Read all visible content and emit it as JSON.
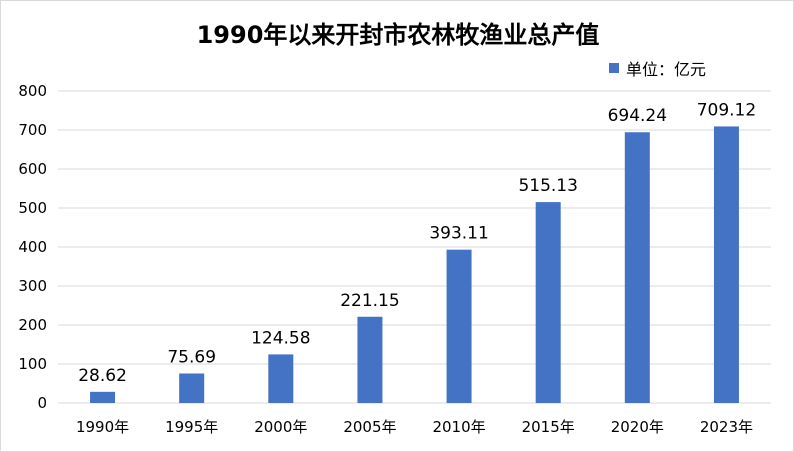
{
  "chart_data": {
    "type": "bar",
    "title": "1990年以来开封市农林牧渔业总产值",
    "legend_label": "单位：亿元",
    "categories": [
      "1990年",
      "1995年",
      "2000年",
      "2005年",
      "2010年",
      "2015年",
      "2020年",
      "2023年"
    ],
    "series": [
      {
        "name": "单位：亿元",
        "values": [
          28.62,
          75.69,
          124.58,
          221.15,
          393.11,
          515.13,
          694.24,
          709.12
        ]
      }
    ],
    "data_labels": [
      "28.62",
      "75.69",
      "124.58",
      "221.15",
      "393.11",
      "515.13",
      "694.24",
      "709.12"
    ],
    "y_ticks": [
      "0",
      "100",
      "200",
      "300",
      "400",
      "500",
      "600",
      "700",
      "800"
    ],
    "ylim": [
      0,
      800
    ],
    "grid": true,
    "legend_position": "top-right",
    "bar_color": "#4472c4",
    "grid_color": "#d9d9d9"
  }
}
